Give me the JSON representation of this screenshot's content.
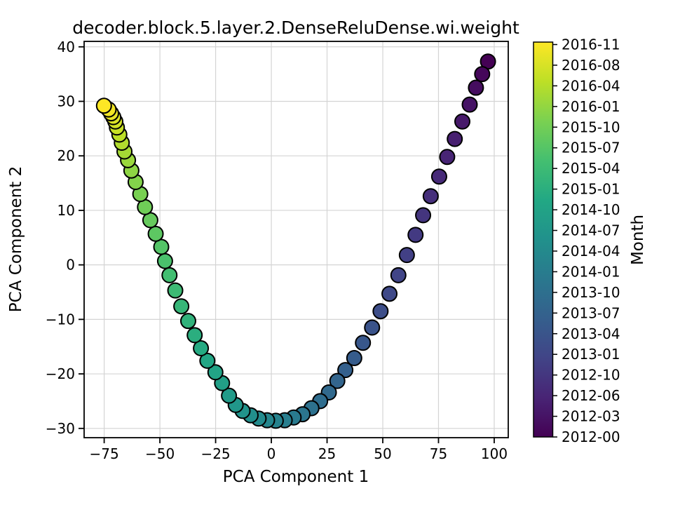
{
  "title": "decoder.block.5.layer.2.DenseReluDense.wi.weight",
  "axes": {
    "x_label": "PCA Component 1",
    "y_label": "PCA Component 2",
    "x_tick_labels": [
      "−75",
      "−50",
      "−25",
      "0",
      "25",
      "50",
      "75",
      "100"
    ],
    "x_tick_values": [
      -75,
      -50,
      -25,
      0,
      25,
      50,
      75,
      100
    ],
    "y_tick_labels": [
      "−30",
      "−20",
      "−10",
      "0",
      "10",
      "20",
      "30",
      "40"
    ],
    "y_tick_values": [
      -30,
      -20,
      -10,
      0,
      10,
      20,
      30,
      40
    ]
  },
  "colorbar": {
    "label": "Month",
    "tick_labels": [
      "2016-11",
      "2016-08",
      "2016-04",
      "2016-01",
      "2015-10",
      "2015-07",
      "2015-04",
      "2015-01",
      "2014-10",
      "2014-07",
      "2014-04",
      "2014-01",
      "2013-10",
      "2013-07",
      "2013-04",
      "2013-01",
      "2012-10",
      "2012-06",
      "2012-03",
      "2012-00"
    ],
    "colormap": "viridis",
    "viridis_stops": [
      "#440154",
      "#482475",
      "#414487",
      "#355f8d",
      "#2a788e",
      "#21918c",
      "#22a884",
      "#44bf70",
      "#7ad151",
      "#bddf26",
      "#fde725"
    ]
  },
  "colors": {
    "background": "#ffffff",
    "grid": "#d4d4d4",
    "spine": "#000000",
    "marker_edge": "#000000"
  },
  "chart_data": {
    "type": "scatter",
    "title": "decoder.block.5.layer.2.DenseReluDense.wi.weight",
    "xlabel": "PCA Component 1",
    "ylabel": "PCA Component 2",
    "xlim": [
      -84,
      106.3
    ],
    "ylim": [
      -31.7,
      41.0
    ],
    "grid": true,
    "legend": "colorbar right, viridis, labeled Month, range 2012-00 (dark purple, first point) to 2016-11 (yellow, last point)",
    "color_encoding": "points ordered by month index 0-59; color = viridis(index/59); first point top-right is 2012-00, last point top-left is 2016-11",
    "points": [
      [
        97.2,
        37.3
      ],
      [
        94.6,
        35.0
      ],
      [
        91.8,
        32.5
      ],
      [
        89.0,
        29.4
      ],
      [
        85.7,
        26.3
      ],
      [
        82.3,
        23.1
      ],
      [
        78.9,
        19.8
      ],
      [
        75.3,
        16.2
      ],
      [
        71.5,
        12.6
      ],
      [
        68.1,
        9.1
      ],
      [
        64.7,
        5.5
      ],
      [
        60.8,
        1.8
      ],
      [
        57.0,
        -1.9
      ],
      [
        53.0,
        -5.3
      ],
      [
        49.0,
        -8.5
      ],
      [
        45.2,
        -11.5
      ],
      [
        41.1,
        -14.3
      ],
      [
        37.2,
        -17.1
      ],
      [
        33.2,
        -19.3
      ],
      [
        29.6,
        -21.3
      ],
      [
        25.8,
        -23.4
      ],
      [
        21.9,
        -25.0
      ],
      [
        18.0,
        -26.3
      ],
      [
        14.0,
        -27.4
      ],
      [
        10.0,
        -28.0
      ],
      [
        6.0,
        -28.5
      ],
      [
        2.0,
        -28.6
      ],
      [
        -1.9,
        -28.5
      ],
      [
        -5.7,
        -28.2
      ],
      [
        -9.3,
        -27.6
      ],
      [
        -12.9,
        -26.8
      ],
      [
        -16.0,
        -25.7
      ],
      [
        -19.0,
        -24.0
      ],
      [
        -22.1,
        -21.7
      ],
      [
        -25.1,
        -19.7
      ],
      [
        -28.7,
        -17.6
      ],
      [
        -31.6,
        -15.3
      ],
      [
        -34.4,
        -12.9
      ],
      [
        -37.3,
        -10.3
      ],
      [
        -40.4,
        -7.6
      ],
      [
        -43.1,
        -4.7
      ],
      [
        -45.7,
        -1.9
      ],
      [
        -47.7,
        0.7
      ],
      [
        -49.4,
        3.3
      ],
      [
        -51.9,
        5.7
      ],
      [
        -54.3,
        8.2
      ],
      [
        -56.7,
        10.6
      ],
      [
        -58.8,
        13.0
      ],
      [
        -60.9,
        15.2
      ],
      [
        -62.8,
        17.3
      ],
      [
        -64.3,
        19.2
      ],
      [
        -65.9,
        20.8
      ],
      [
        -67.1,
        22.4
      ],
      [
        -68.2,
        23.9
      ],
      [
        -69.3,
        25.2
      ],
      [
        -70.0,
        26.3
      ],
      [
        -70.9,
        27.1
      ],
      [
        -71.9,
        27.8
      ],
      [
        -73.0,
        28.5
      ],
      [
        -75.1,
        29.2
      ]
    ]
  }
}
